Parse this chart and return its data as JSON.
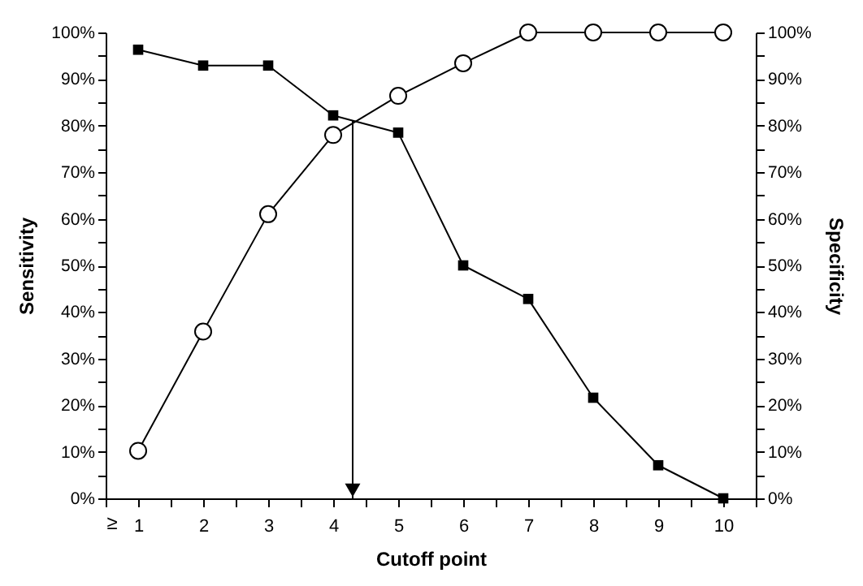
{
  "chart_data": {
    "type": "line",
    "xlabel": "Cutoff point",
    "ylabel": "Sensitivity",
    "y2label": "Specificity",
    "x": [
      1,
      2,
      3,
      4,
      5,
      6,
      7,
      8,
      9,
      10
    ],
    "series": [
      {
        "color": "#000000",
        "marker": "square",
        "values": [
          96.3,
          92.9,
          92.9,
          82.2,
          78.5,
          50,
          42.8,
          21.6,
          7.1,
          0
        ]
      },
      {
        "color": "#000000",
        "marker": "circle",
        "axis": "y2",
        "values": [
          10.2,
          35.8,
          61,
          78,
          86.4,
          93.4,
          100,
          100,
          100,
          100
        ]
      }
    ],
    "xlim": [
      0.5,
      10.5
    ],
    "xticks": [
      {
        "value": 0.5,
        "label": null
      },
      1,
      {
        "value": 1.5,
        "label": null
      },
      2,
      {
        "value": 2.5,
        "label": null
      },
      3,
      {
        "value": 3.5,
        "label": null
      },
      4,
      {
        "value": 4.5,
        "label": null
      },
      5,
      {
        "value": 5.5,
        "label": null
      },
      6,
      {
        "value": 6.5,
        "label": null
      },
      7,
      {
        "value": 7.5,
        "label": null
      },
      8,
      {
        "value": 8.5,
        "label": null
      },
      9,
      {
        "value": 9.5,
        "label": null
      },
      10,
      {
        "value": 10.5,
        "label": null
      }
    ],
    "ylim": [
      0,
      100
    ],
    "yticks": [
      {
        "value": 0,
        "label": "0%"
      },
      {
        "value": 5,
        "label": null
      },
      {
        "value": 10,
        "label": "10%"
      },
      {
        "value": 15,
        "label": null
      },
      {
        "value": 20,
        "label": "20%"
      },
      {
        "value": 25,
        "label": null
      },
      {
        "value": 30,
        "label": "30%"
      },
      {
        "value": 35,
        "label": null
      },
      {
        "value": 40,
        "label": "40%"
      },
      {
        "value": 45,
        "label": null
      },
      {
        "value": 50,
        "label": "50%"
      },
      {
        "value": 55,
        "label": null
      },
      {
        "value": 60,
        "label": "60%"
      },
      {
        "value": 65,
        "label": null
      },
      {
        "value": 70,
        "label": "70%"
      },
      {
        "value": 75,
        "label": null
      },
      {
        "value": 80,
        "label": "80%"
      },
      {
        "value": 85,
        "label": null
      },
      {
        "value": 90,
        "label": "90%"
      },
      {
        "value": 95,
        "label": null
      },
      {
        "value": 100,
        "label": "100%"
      }
    ],
    "y2lim": [
      0,
      100
    ],
    "y2ticks": [
      {
        "value": 0,
        "label": "0%"
      },
      {
        "value": 5,
        "label": null
      },
      {
        "value": 10,
        "label": "10%"
      },
      {
        "value": 15,
        "label": null
      },
      {
        "value": 20,
        "label": "20%"
      },
      {
        "value": 25,
        "label": null
      },
      {
        "value": 30,
        "label": "30%"
      },
      {
        "value": 35,
        "label": null
      },
      {
        "value": 40,
        "label": "40%"
      },
      {
        "value": 45,
        "label": null
      },
      {
        "value": 50,
        "label": "50%"
      },
      {
        "value": 55,
        "label": null
      },
      {
        "value": 60,
        "label": "60%"
      },
      {
        "value": 65,
        "label": null
      },
      {
        "value": 70,
        "label": "70%"
      },
      {
        "value": 75,
        "label": null
      },
      {
        "value": 80,
        "label": "80%"
      },
      {
        "value": 85,
        "label": null
      },
      {
        "value": 90,
        "label": "90%"
      },
      {
        "value": 95,
        "label": null
      },
      {
        "value": 100,
        "label": "100%"
      }
    ],
    "ref_lines": [
      {
        "axis": "x",
        "value": 4.3,
        "color": "#000000",
        "line_style": "solid"
      }
    ],
    "annotations": [
      "≥"
    ],
    "grid": false
  }
}
